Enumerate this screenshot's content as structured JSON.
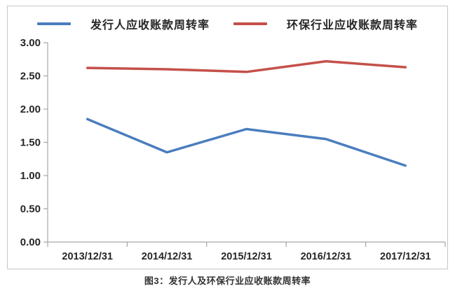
{
  "caption": "图3：发行人及环保行业应收账款周转率",
  "colors": {
    "axis": "#a6a6a6",
    "tick_text": "#262626",
    "frame_border": "#c6c6c6",
    "series_blue": "#4A7DBE",
    "series_red": "#C5504A"
  },
  "chart_data": {
    "type": "line",
    "title": "",
    "xlabel": "",
    "ylabel": "",
    "categories": [
      "2013/12/31",
      "2014/12/31",
      "2015/12/31",
      "2016/12/31",
      "2017/12/31"
    ],
    "series": [
      {
        "name": "发行人应收账款周转率",
        "color": "#4A7DBE",
        "values": [
          1.85,
          1.35,
          1.7,
          1.55,
          1.15
        ]
      },
      {
        "name": "环保行业应收账款周转率",
        "color": "#C5504A",
        "values": [
          2.62,
          2.6,
          2.56,
          2.72,
          2.63
        ]
      }
    ],
    "ylim": [
      0,
      3
    ],
    "y_ticks": [
      "0.00",
      "0.50",
      "1.00",
      "1.50",
      "2.00",
      "2.50",
      "3.00"
    ],
    "grid": false,
    "legend_position": "top"
  }
}
